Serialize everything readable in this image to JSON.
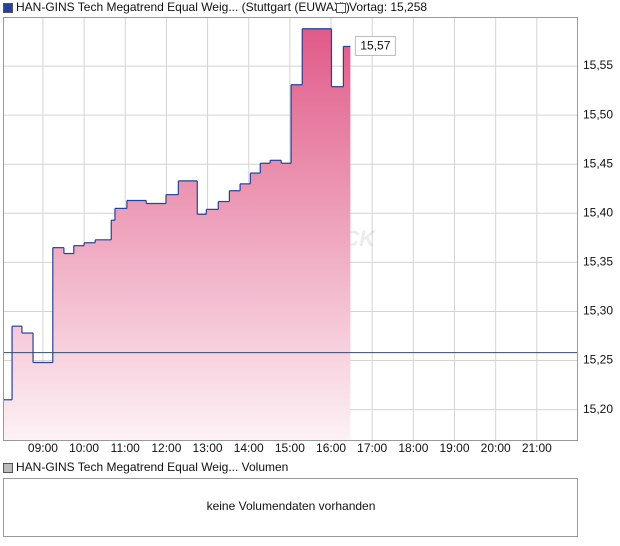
{
  "chart_data": {
    "type": "step",
    "series": [
      {
        "name": "HAN-GINS Tech Megatrend Equal Weig... (Stuttgart (EUWAX))",
        "color": "#2a3f9a",
        "x": [
          8.03,
          8.25,
          8.49,
          8.76,
          9.24,
          9.51,
          9.75,
          10.0,
          10.27,
          10.66,
          10.75,
          11.04,
          11.51,
          11.99,
          12.29,
          12.75,
          12.97,
          13.26,
          13.53,
          13.79,
          14.04,
          14.28,
          14.52,
          14.79,
          15.03,
          15.3,
          16.01,
          16.3,
          16.47
        ],
        "values": [
          15.21,
          15.285,
          15.278,
          15.248,
          15.365,
          15.359,
          15.367,
          15.37,
          15.373,
          15.393,
          15.405,
          15.413,
          15.41,
          15.419,
          15.433,
          15.399,
          15.404,
          15.412,
          15.423,
          15.43,
          15.441,
          15.451,
          15.454,
          15.451,
          15.531,
          15.588,
          15.529,
          15.57,
          15.57
        ],
        "value_labels": [
          null,
          null,
          null,
          null,
          null,
          null,
          null,
          null,
          null,
          null,
          null,
          null,
          null,
          null,
          null,
          null,
          null,
          null,
          null,
          null,
          null,
          null,
          null,
          null,
          null,
          null,
          null,
          null,
          "15,57"
        ]
      }
    ],
    "reference": {
      "label": "Vortag: 15,258",
      "value": 15.258,
      "color": "#3a4a6a"
    },
    "watermark": "AKTIENCHECK",
    "xlim": [
      8.03,
      22.0
    ],
    "xticks": [
      {
        "value": 9,
        "label": "09:00"
      },
      {
        "value": 10,
        "label": "10:00"
      },
      {
        "value": 11,
        "label": "11:00"
      },
      {
        "value": 12,
        "label": "12:00"
      },
      {
        "value": 13,
        "label": "13:00"
      },
      {
        "value": 14,
        "label": "14:00"
      },
      {
        "value": 15,
        "label": "15:00"
      },
      {
        "value": 16,
        "label": "16:00"
      },
      {
        "value": 17,
        "label": "17:00"
      },
      {
        "value": 18,
        "label": "18:00"
      },
      {
        "value": 19,
        "label": "19:00"
      },
      {
        "value": 20,
        "label": "20:00"
      },
      {
        "value": 21,
        "label": "21:00"
      }
    ],
    "ylim": [
      15.168,
      15.6
    ],
    "yticks": [
      {
        "value": 15.2,
        "label": "15,20"
      },
      {
        "value": 15.25,
        "label": "15,25"
      },
      {
        "value": 15.3,
        "label": "15,30"
      },
      {
        "value": 15.35,
        "label": "15,35"
      },
      {
        "value": 15.4,
        "label": "15,40"
      },
      {
        "value": 15.45,
        "label": "15,45"
      },
      {
        "value": 15.5,
        "label": "15,50"
      },
      {
        "value": 15.55,
        "label": "15,55"
      }
    ],
    "grid": true,
    "fill_gradient": [
      "#e05a88",
      "#fdf2f6"
    ],
    "volume": {
      "legend": "HAN-GINS Tech Megatrend Equal Weig... Volumen",
      "message": "keine Volumendaten vorhanden"
    }
  }
}
